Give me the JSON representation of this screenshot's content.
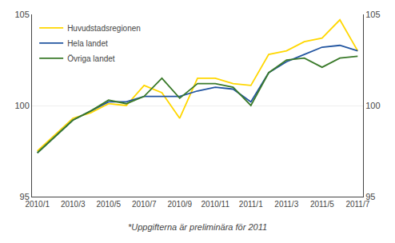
{
  "chart_data": {
    "type": "line",
    "categories": [
      "2010/1",
      null,
      "2010/3",
      null,
      "2010/5",
      null,
      "2010/7",
      null,
      "2010/9",
      null,
      "2010/11",
      null,
      "2011/1",
      null,
      "2011/3",
      null,
      "2011/5",
      null,
      "2011/7"
    ],
    "series": [
      {
        "name": "Huvudstadsregionen",
        "color": "#FFD700",
        "values": [
          97.5,
          98.4,
          99.3,
          99.6,
          100.1,
          100.0,
          101.1,
          100.7,
          99.3,
          101.5,
          101.5,
          101.2,
          101.1,
          102.8,
          103.0,
          103.5,
          103.7,
          104.7,
          103.0
        ]
      },
      {
        "name": "Hela landet",
        "color": "#2255A0",
        "values": [
          97.4,
          98.3,
          99.2,
          99.7,
          100.2,
          100.2,
          100.5,
          100.5,
          100.5,
          100.8,
          101.0,
          100.9,
          100.2,
          101.8,
          102.4,
          102.8,
          103.2,
          103.3,
          103.0
        ]
      },
      {
        "name": "Övriga landet",
        "color": "#3A7A2A",
        "values": [
          97.4,
          98.3,
          99.2,
          99.7,
          100.3,
          100.1,
          100.5,
          101.5,
          100.4,
          101.2,
          101.2,
          101.0,
          100.0,
          101.8,
          102.5,
          102.6,
          102.1,
          102.6,
          102.7
        ]
      }
    ],
    "ylim": [
      95,
      105
    ],
    "yticks": [
      95,
      100,
      105
    ],
    "y2lim": [
      95,
      105
    ],
    "y2ticks": [
      95,
      100,
      105
    ],
    "grid": true,
    "legend": "upper left",
    "annotations": [
      "*Uppgifterna är preliminära för 2011"
    ]
  }
}
